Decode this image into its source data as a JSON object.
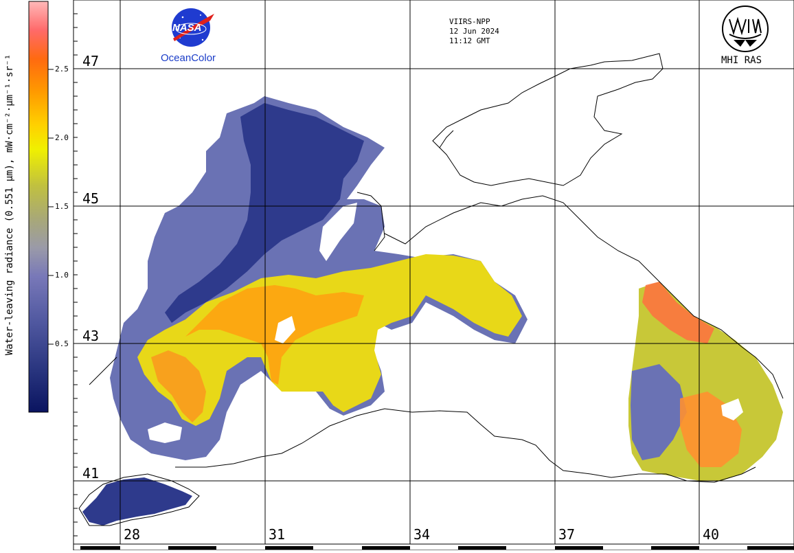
{
  "colorbar": {
    "label": "Water-leaving radiance (0.551 µm), mW·cm⁻²·µm⁻¹·sr⁻¹",
    "ticks": [
      "2.5",
      "2.0",
      "1.5",
      "1.0",
      "0.5"
    ],
    "colors": [
      "#0a1460",
      "#24307a",
      "#46509a",
      "#6870b0",
      "#8a8ab8",
      "#a8a890",
      "#c8c830",
      "#f0f000",
      "#ffd000",
      "#ffa000",
      "#ff7000",
      "#ff6060",
      "#ffb0b0"
    ]
  },
  "latitude_labels": [
    "47",
    "45",
    "43",
    "41"
  ],
  "longitude_labels": [
    "28",
    "31",
    "34",
    "37",
    "40"
  ],
  "satellite_info": {
    "sensor": "VIIRS-NPP",
    "date": "12 Jun 2024",
    "time": "11:12 GMT"
  },
  "logos": {
    "nasa_text": "NASA",
    "nasa_caption": "OceanColor",
    "mhi_caption": "MHI RAS"
  }
}
